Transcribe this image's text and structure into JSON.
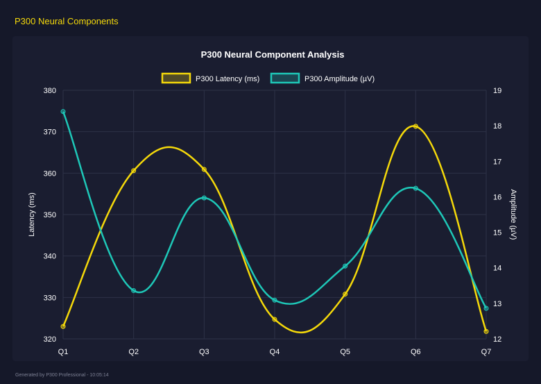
{
  "header": {
    "title": "P300 Neural Components"
  },
  "footer": {
    "text": "Generated by P300 Professional - 10:05:14"
  },
  "chart_data": {
    "type": "line",
    "title": "P300 Neural Component Analysis",
    "categories": [
      "Q1",
      "Q2",
      "Q3",
      "Q4",
      "Q5",
      "Q6",
      "Q7"
    ],
    "series": [
      {
        "name": "P300 Latency (ms)",
        "axis": "left",
        "color": "#f5d90a",
        "values": [
          323,
          360.6,
          360.9,
          324.7,
          330.8,
          371.3,
          321.8
        ]
      },
      {
        "name": "P300 Amplitude (µV)",
        "axis": "right",
        "color": "#1ec8b8",
        "values": [
          18.4,
          13.36,
          15.97,
          13.09,
          14.05,
          16.24,
          12.86
        ]
      }
    ],
    "ylabel": "Latency (ms)",
    "y2label": "Amplitude (µV)",
    "ylim": [
      320,
      380
    ],
    "y2lim": [
      12,
      19
    ],
    "yticks": [
      "320",
      "330",
      "340",
      "350",
      "360",
      "370",
      "380"
    ],
    "y2ticks": [
      "12",
      "13",
      "14",
      "15",
      "16",
      "17",
      "18",
      "19"
    ],
    "grid": true,
    "legend": "top"
  }
}
